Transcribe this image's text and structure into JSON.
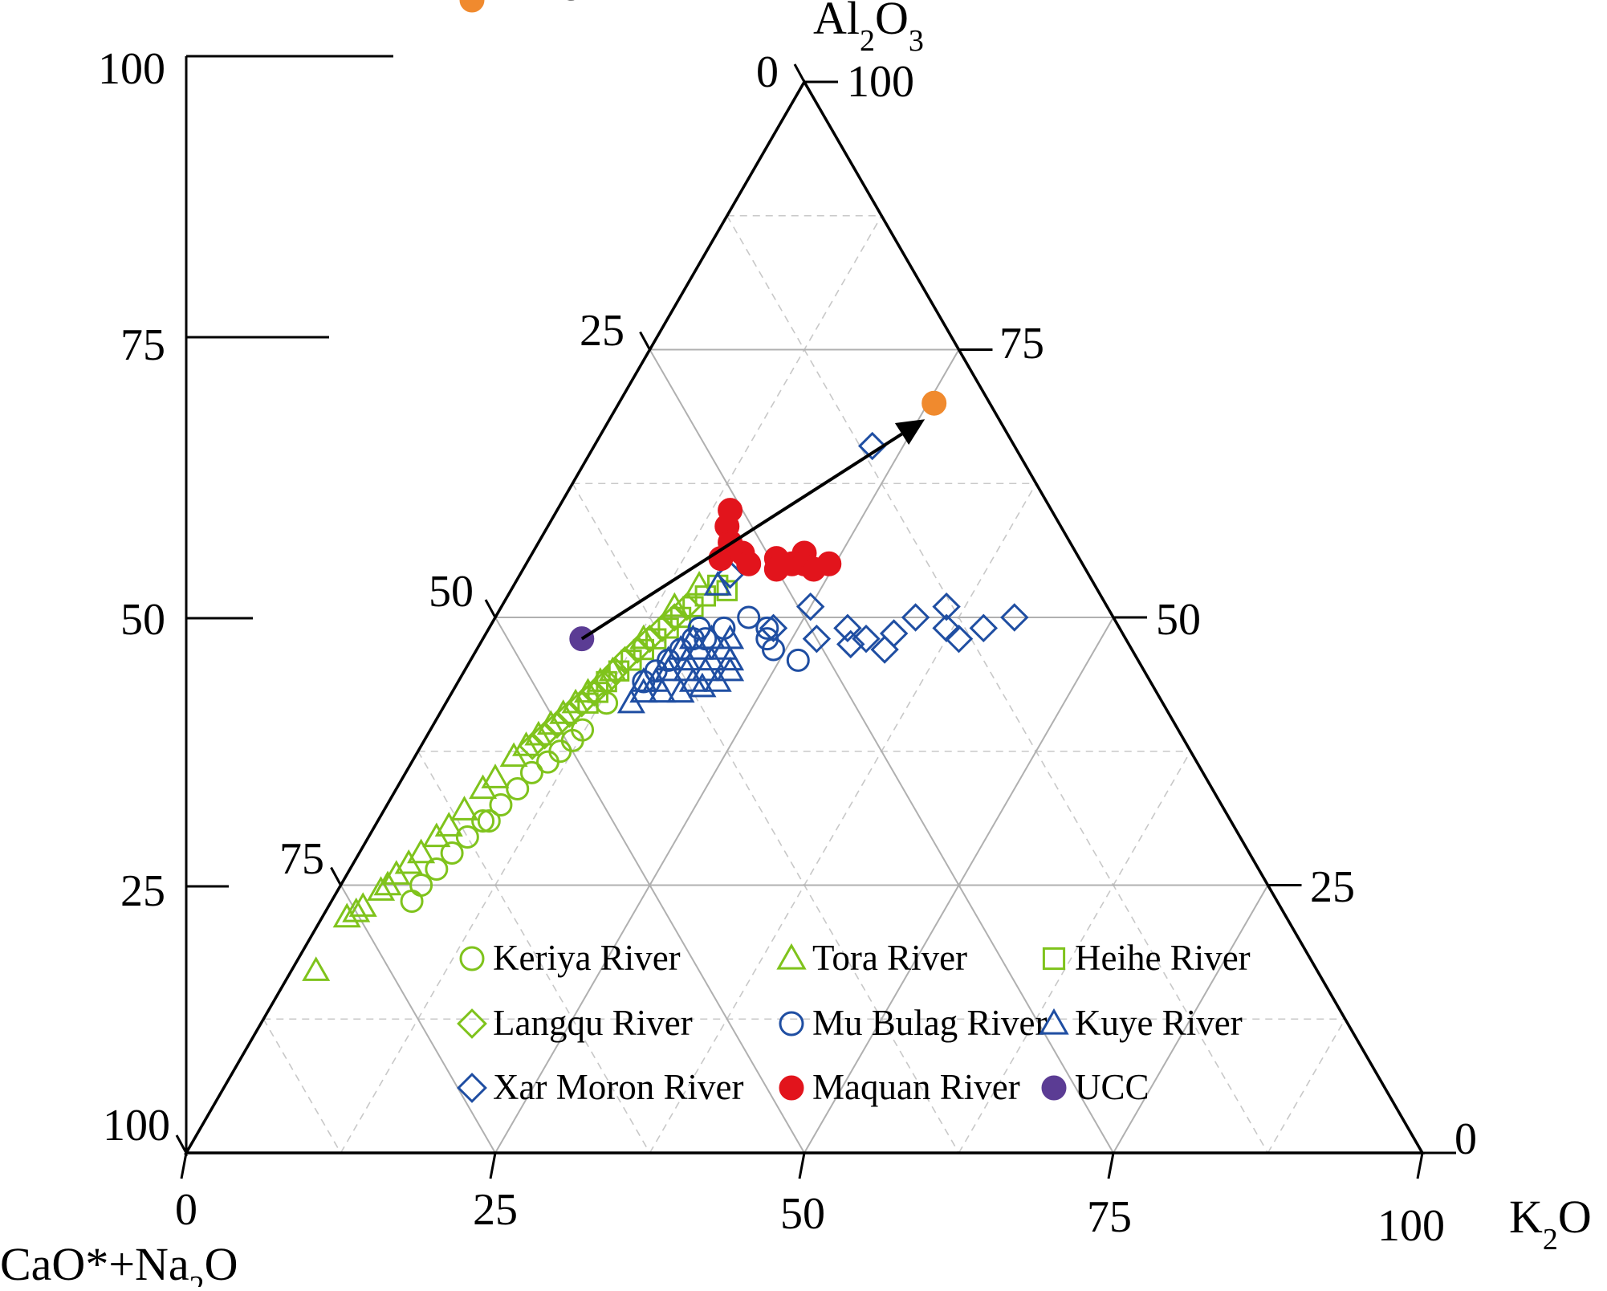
{
  "chart_data": {
    "type": "scatter",
    "subtype": "ternary",
    "title": "",
    "apex_labels": {
      "top": {
        "main": "Al",
        "sub1": "2",
        "mid": "O",
        "sub2": "3"
      },
      "left": {
        "main": "CaO*+Na",
        "sub1": "2",
        "mid": "O",
        "sub2": ""
      },
      "right": {
        "main": "K",
        "sub1": "2",
        "mid": "O",
        "sub2": ""
      }
    },
    "ticks": {
      "left_edge": [
        "0",
        "25",
        "50",
        "75",
        "100"
      ],
      "right_edge": [
        "100",
        "75",
        "50",
        "25",
        "0"
      ],
      "bottom_edge": [
        "0",
        "25",
        "50",
        "75",
        "100"
      ],
      "vertical_scale": [
        "100",
        "75",
        "50",
        "25"
      ]
    },
    "arrow": {
      "from": {
        "al": 48,
        "k": 8
      },
      "to": {
        "al": 68.5,
        "k": 25.5
      }
    },
    "grid": true,
    "legend_position": "bottom-inside",
    "series": [
      {
        "name": "Keriya River",
        "marker": "circle",
        "filled": false,
        "color": "#7fc31c",
        "points": [
          [
            23.5,
            6.5
          ],
          [
            25,
            6.5
          ],
          [
            26.5,
            7
          ],
          [
            28,
            7.5
          ],
          [
            29.5,
            8
          ],
          [
            31,
            8.5
          ],
          [
            31,
            9
          ],
          [
            32.5,
            9.2
          ],
          [
            34,
            9.8
          ],
          [
            35.5,
            10.2
          ],
          [
            36.5,
            11
          ],
          [
            37.5,
            11.5
          ],
          [
            38.5,
            12
          ],
          [
            39.5,
            12.3
          ],
          [
            42,
            13
          ]
        ]
      },
      {
        "name": "Tora River",
        "marker": "triangle",
        "filled": false,
        "color": "#7fc31c",
        "points": [
          [
            17,
            2
          ],
          [
            22,
            2
          ],
          [
            22.5,
            2.5
          ],
          [
            23,
            2.8
          ],
          [
            24.5,
            3.5
          ],
          [
            25,
            3.8
          ],
          [
            26,
            4
          ],
          [
            27,
            4.5
          ],
          [
            28,
            5
          ],
          [
            29.5,
            5.5
          ],
          [
            30.5,
            6
          ],
          [
            32,
            6.5
          ],
          [
            34,
            7
          ],
          [
            35,
            7.5
          ],
          [
            37,
            8
          ],
          [
            38,
            8.5
          ],
          [
            39,
            9
          ],
          [
            40,
            9.5
          ],
          [
            41,
            10
          ],
          [
            42,
            10.5
          ],
          [
            43,
            11
          ],
          [
            44,
            11.5
          ],
          [
            45,
            12
          ],
          [
            48,
            13
          ],
          [
            51,
            14
          ],
          [
            53,
            15
          ]
        ]
      },
      {
        "name": "Heihe River",
        "marker": "square",
        "filled": false,
        "color": "#7fc31c",
        "points": [
          [
            42,
            11.5
          ],
          [
            43,
            11.8
          ],
          [
            44,
            12
          ],
          [
            45,
            12.5
          ],
          [
            46,
            13
          ],
          [
            47,
            13.5
          ],
          [
            48,
            14
          ],
          [
            49,
            14.5
          ],
          [
            50,
            15
          ],
          [
            51,
            15.5
          ],
          [
            52,
            16
          ],
          [
            53,
            16.5
          ],
          [
            52.5,
            17.5
          ]
        ]
      },
      {
        "name": "Langqu River",
        "marker": "diamond",
        "filled": false,
        "color": "#7fc31c",
        "points": [
          [
            38,
            9
          ],
          [
            39,
            9.5
          ],
          [
            40,
            10
          ],
          [
            41,
            10.5
          ],
          [
            42,
            11
          ],
          [
            43,
            11.5
          ],
          [
            44,
            12
          ],
          [
            45,
            12.2
          ],
          [
            46,
            12.5
          ],
          [
            47,
            13
          ],
          [
            48,
            13.5
          ],
          [
            49,
            14
          ],
          [
            50,
            14.5
          ],
          [
            51,
            15
          ]
        ]
      },
      {
        "name": "Mu Bulag River",
        "marker": "circle",
        "filled": false,
        "color": "#1f4ea2",
        "points": [
          [
            44,
            15
          ],
          [
            45,
            15.5
          ],
          [
            46,
            16
          ],
          [
            47,
            16.5
          ],
          [
            48,
            17
          ],
          [
            49,
            17
          ],
          [
            48,
            18
          ],
          [
            49,
            19
          ],
          [
            50,
            20.5
          ],
          [
            49,
            22.5
          ],
          [
            48,
            23
          ],
          [
            47,
            24
          ],
          [
            46,
            26.5
          ]
        ]
      },
      {
        "name": "Kuye River",
        "marker": "triangle",
        "filled": false,
        "color": "#1f4ea2",
        "points": [
          [
            42,
            15
          ],
          [
            43,
            15.5
          ],
          [
            43,
            17
          ],
          [
            43,
            18.5
          ],
          [
            43.5,
            20
          ],
          [
            44,
            15
          ],
          [
            44,
            16
          ],
          [
            44,
            19
          ],
          [
            44,
            21
          ],
          [
            45,
            16.5
          ],
          [
            45,
            18
          ],
          [
            45,
            19.5
          ],
          [
            45,
            21.5
          ],
          [
            46,
            16
          ],
          [
            46,
            17.5
          ],
          [
            46,
            19.5
          ],
          [
            47,
            16.5
          ],
          [
            47,
            18
          ],
          [
            47,
            20
          ],
          [
            48,
            17
          ],
          [
            48,
            18.5
          ],
          [
            48,
            20
          ],
          [
            46,
            21
          ],
          [
            53,
            16.5
          ]
        ]
      },
      {
        "name": "Xar Moron River",
        "marker": "diamond",
        "filled": false,
        "color": "#1f4ea2",
        "points": [
          [
            66,
            22.5
          ],
          [
            54,
            17
          ],
          [
            51,
            25
          ],
          [
            49,
            23
          ],
          [
            48,
            27
          ],
          [
            47.5,
            30
          ],
          [
            49,
            29
          ],
          [
            48,
            31
          ],
          [
            47,
            33
          ],
          [
            48.5,
            33
          ],
          [
            50,
            34
          ],
          [
            51,
            36
          ],
          [
            49,
            37
          ],
          [
            48,
            38.5
          ],
          [
            49,
            40
          ],
          [
            50,
            42
          ]
        ]
      },
      {
        "name": "Maquan River",
        "marker": "circle",
        "filled": true,
        "color": "#e2141c",
        "points": [
          [
            60,
            14
          ],
          [
            58.5,
            14.5
          ],
          [
            57,
            15.5
          ],
          [
            55.5,
            15.5
          ],
          [
            56,
            17
          ],
          [
            55,
            18
          ],
          [
            55.5,
            20
          ],
          [
            54.5,
            20.5
          ],
          [
            55,
            21.5
          ],
          [
            56,
            22
          ],
          [
            55,
            22.5
          ],
          [
            54.5,
            23.5
          ],
          [
            55,
            24.5
          ]
        ]
      },
      {
        "name": "UCC",
        "marker": "circle",
        "filled": true,
        "color": "#5b3c94",
        "points": [
          [
            48,
            8
          ]
        ]
      },
      {
        "name": "PAAS",
        "marker": "circle",
        "filled": true,
        "color": "#f08a2e",
        "points": [
          [
            70,
            25.5
          ]
        ]
      }
    ]
  }
}
